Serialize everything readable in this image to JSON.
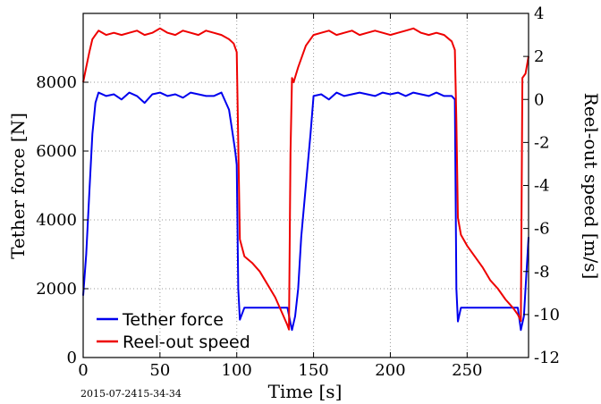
{
  "footer_stamp": "2015-07-2415-34-34",
  "chart_data": {
    "type": "line",
    "xlabel": "Time [s]",
    "ylabel_left": "Tether force [N]",
    "ylabel_right": "Reel-out speed [m/s]",
    "xlim": [
      0,
      290
    ],
    "ylim_left": [
      0,
      10000
    ],
    "ylim_right": [
      -12,
      4
    ],
    "x_ticks": [
      "0",
      "50",
      "100",
      "150",
      "200",
      "250"
    ],
    "y_left_ticks": [
      "0",
      "2000",
      "4000",
      "6000",
      "8000"
    ],
    "y_right_ticks": [
      "-12",
      "-10",
      "-8",
      "-6",
      "-4",
      "-2",
      "0",
      "2",
      "4"
    ],
    "grid": true,
    "legend_position": "bottom-left",
    "series": [
      {
        "name": "Tether force",
        "axis": "left",
        "color": "#0000ee",
        "x": [
          0,
          2,
          4,
          6,
          8,
          10,
          15,
          20,
          25,
          30,
          35,
          40,
          45,
          50,
          55,
          60,
          65,
          70,
          75,
          80,
          85,
          90,
          95,
          97,
          99,
          100,
          101,
          102,
          105,
          110,
          115,
          120,
          125,
          130,
          133,
          135,
          136,
          138,
          140,
          142,
          145,
          148,
          150,
          155,
          160,
          165,
          170,
          175,
          180,
          185,
          190,
          195,
          200,
          205,
          210,
          215,
          220,
          225,
          230,
          235,
          240,
          242,
          243,
          244,
          246,
          250,
          255,
          260,
          265,
          270,
          275,
          280,
          283,
          285,
          287,
          290
        ],
        "y": [
          1800,
          3000,
          4800,
          6500,
          7400,
          7700,
          7600,
          7650,
          7500,
          7700,
          7600,
          7400,
          7650,
          7700,
          7600,
          7650,
          7550,
          7700,
          7650,
          7600,
          7600,
          7700,
          7200,
          6600,
          6000,
          5600,
          2000,
          1100,
          1450,
          1450,
          1450,
          1450,
          1450,
          1450,
          1450,
          1000,
          800,
          1200,
          2000,
          3500,
          5000,
          6500,
          7600,
          7650,
          7500,
          7700,
          7600,
          7650,
          7700,
          7650,
          7600,
          7700,
          7650,
          7700,
          7600,
          7700,
          7650,
          7600,
          7700,
          7600,
          7600,
          7500,
          2000,
          1050,
          1450,
          1450,
          1450,
          1450,
          1450,
          1450,
          1450,
          1450,
          1450,
          800,
          1200,
          3500
        ]
      },
      {
        "name": "Reel-out speed",
        "axis": "right",
        "color": "#ee0000",
        "x": [
          0,
          2,
          4,
          6,
          8,
          10,
          15,
          20,
          25,
          30,
          35,
          40,
          45,
          50,
          55,
          60,
          65,
          70,
          75,
          80,
          85,
          90,
          95,
          98,
          100,
          101,
          102,
          105,
          110,
          115,
          120,
          125,
          130,
          133,
          134,
          135,
          136,
          137,
          140,
          145,
          150,
          155,
          160,
          165,
          170,
          175,
          180,
          185,
          190,
          195,
          200,
          205,
          210,
          215,
          220,
          225,
          230,
          235,
          240,
          242,
          243,
          244,
          246,
          250,
          255,
          260,
          265,
          270,
          275,
          280,
          283,
          285,
          286,
          288,
          290
        ],
        "y": [
          0.8,
          1.5,
          2.2,
          2.8,
          3.0,
          3.2,
          3.0,
          3.1,
          3.0,
          3.1,
          3.2,
          3.0,
          3.1,
          3.3,
          3.1,
          3.0,
          3.2,
          3.1,
          3.0,
          3.2,
          3.1,
          3.0,
          2.8,
          2.6,
          2.2,
          -2.0,
          -6.5,
          -7.3,
          -7.6,
          -8.0,
          -8.6,
          -9.2,
          -10.0,
          -10.5,
          -10.7,
          -2.5,
          1.0,
          0.8,
          1.5,
          2.5,
          3.0,
          3.1,
          3.2,
          3.0,
          3.1,
          3.2,
          3.0,
          3.1,
          3.2,
          3.1,
          3.0,
          3.1,
          3.2,
          3.3,
          3.1,
          3.0,
          3.1,
          3.0,
          2.7,
          2.3,
          -1.0,
          -5.5,
          -6.3,
          -6.8,
          -7.3,
          -7.8,
          -8.4,
          -8.8,
          -9.3,
          -9.7,
          -10.0,
          -10.3,
          1.0,
          1.2,
          2.0
        ]
      }
    ]
  }
}
